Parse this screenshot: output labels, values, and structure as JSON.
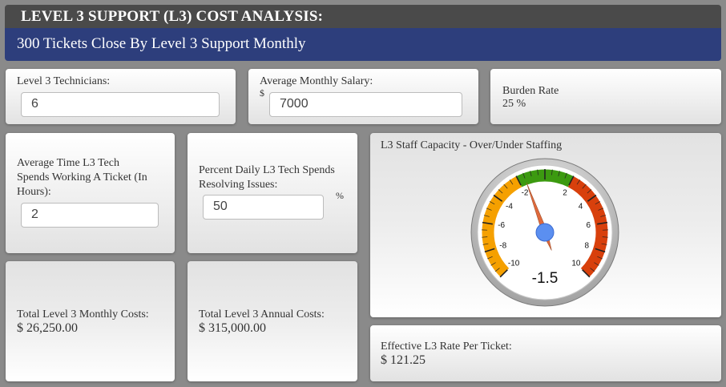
{
  "header": {
    "title": "LEVEL 3 SUPPORT (L3) COST ANALYSIS:",
    "subtitle": "300 Tickets Close By Level 3 Support Monthly"
  },
  "technicians": {
    "label": "Level 3 Technicians:",
    "value": "6"
  },
  "salary": {
    "label": "Average Monthly Salary:",
    "currency": "$",
    "value": "7000"
  },
  "burden": {
    "label": "Burden Rate",
    "value": "25 %"
  },
  "avg_time": {
    "label_line1": "Average Time L3 Tech",
    "label_line2": "Spends Working A Ticket (In",
    "label_line3": "Hours):",
    "value": "2"
  },
  "percent_daily": {
    "label_line1": "Percent Daily L3 Tech Spends",
    "label_line2": "Resolving Issues:",
    "unit": "%",
    "value": "50"
  },
  "capacity": {
    "label": "L3 Staff Capacity - Over/Under Staffing",
    "value": -1.5,
    "value_text": "-1.5",
    "min": -10,
    "max": 10,
    "tick_labels": [
      "-10",
      "-8",
      "-6",
      "-4",
      "-2",
      "2",
      "4",
      "6",
      "8",
      "10"
    ],
    "colors": {
      "under": "#f5a000",
      "ok": "#3c9a10",
      "over": "#d8400c",
      "needle": "#e06a3c",
      "hub": "#5b8ff0"
    }
  },
  "monthly_costs": {
    "label": "Total Level 3 Monthly Costs:",
    "value": "$ 26,250.00"
  },
  "annual_costs": {
    "label": "Total Level 3 Annual Costs:",
    "value": "$ 315,000.00"
  },
  "rate_per_ticket": {
    "label": "Effective L3 Rate Per Ticket:",
    "value": "$ 121.25"
  }
}
